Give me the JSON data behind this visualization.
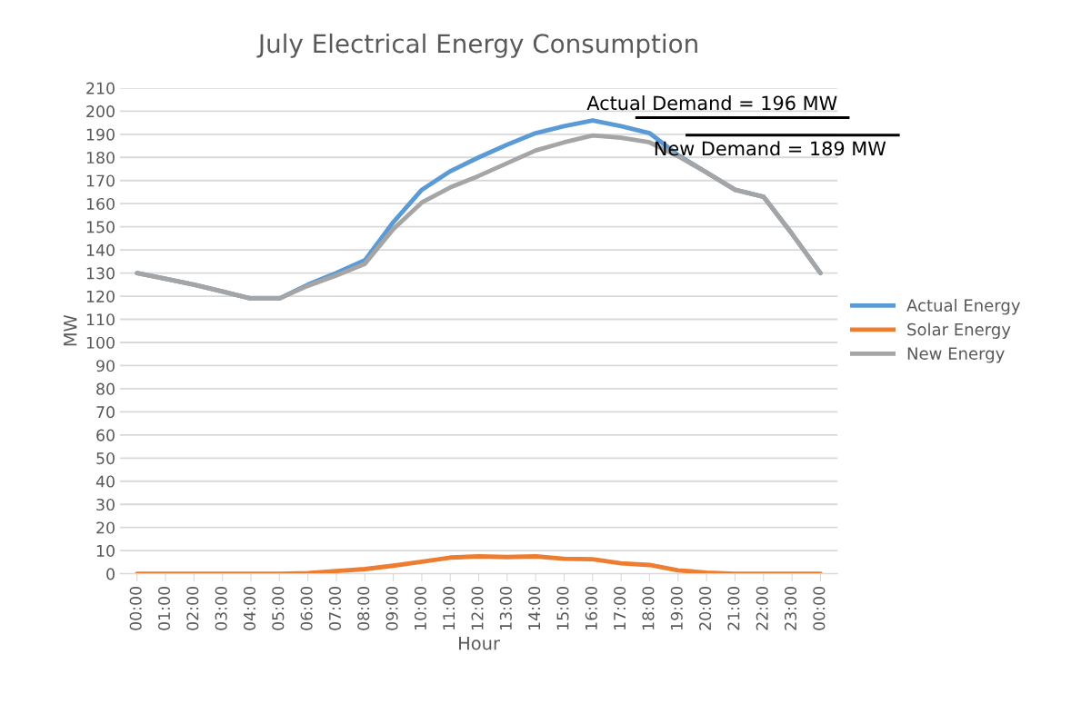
{
  "chart_data": {
    "type": "line",
    "title": "July Electrical Energy Consumption",
    "xlabel": "Hour",
    "ylabel": "MW",
    "categories": [
      "00:00",
      "01:00",
      "02:00",
      "03:00",
      "04:00",
      "05:00",
      "06:00",
      "07:00",
      "08:00",
      "09:00",
      "10:00",
      "11:00",
      "12:00",
      "13:00",
      "14:00",
      "15:00",
      "16:00",
      "17:00",
      "18:00",
      "19:00",
      "20:00",
      "21:00",
      "22:00",
      "23:00",
      "00:00"
    ],
    "series": [
      {
        "name": "Actual Energy",
        "color": "#5b9bd5",
        "values": [
          130,
          127.5,
          125,
          122,
          119,
          119,
          125,
          130,
          135.5,
          152,
          166,
          174,
          180,
          185.5,
          190.5,
          193.5,
          196,
          193.5,
          190.5,
          181,
          173.5,
          166,
          163,
          147,
          130
        ]
      },
      {
        "name": "Solar Energy",
        "color": "#ed7d31",
        "values": [
          0,
          0,
          0,
          0,
          0,
          0,
          0.3,
          1.2,
          2,
          3.5,
          5.2,
          7,
          7.5,
          7.2,
          7.5,
          6.5,
          6.3,
          4.5,
          3.8,
          1.5,
          0.5,
          0,
          0,
          0,
          0
        ]
      },
      {
        "name": "New Energy",
        "color": "#a5a5a5",
        "values": [
          130,
          127.5,
          125,
          122,
          119,
          119,
          124.5,
          129,
          134,
          149,
          160.5,
          167,
          172,
          177.5,
          183,
          186.5,
          189.5,
          188.5,
          186.5,
          180.5,
          173.5,
          166,
          163,
          147,
          130
        ]
      }
    ],
    "annotations": [
      "Actual Demand = 196 MW",
      "New Demand = 189 MW"
    ],
    "ylim": [
      0,
      210
    ],
    "yticks": [
      0,
      10,
      20,
      30,
      40,
      50,
      60,
      70,
      80,
      90,
      100,
      110,
      120,
      130,
      140,
      150,
      160,
      170,
      180,
      190,
      200,
      210
    ],
    "grid": "y",
    "legend": "right",
    "marker": "none",
    "line_style": "solid"
  }
}
